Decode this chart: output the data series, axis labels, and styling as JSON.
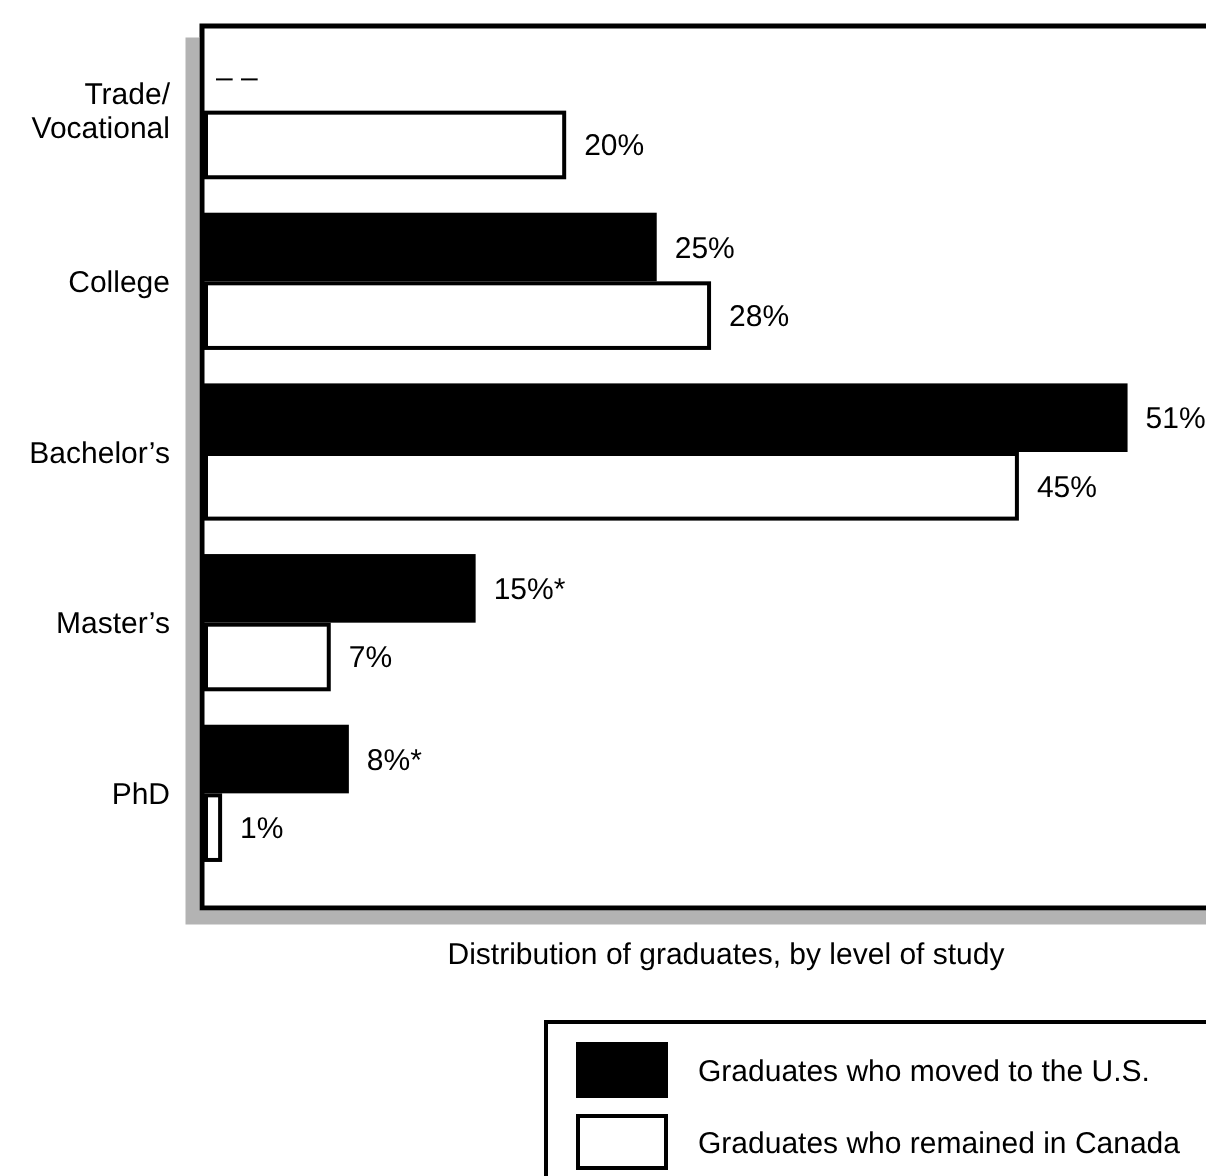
{
  "chart_data": {
    "type": "bar",
    "orientation": "horizontal",
    "xlabel": "Distribution of graduates, by level of study",
    "categories": [
      "Trade/Vocational",
      "College",
      "Bachelor’s",
      "Master’s",
      "PhD"
    ],
    "series": [
      {
        "name": "Graduates who moved to the U.S.",
        "color": "#000000",
        "values": [
          null,
          25,
          51,
          15,
          8
        ],
        "value_labels": [
          "– –",
          "25%",
          "51%",
          "15%*",
          "8%*"
        ]
      },
      {
        "name": "Graduates who remained in Canada",
        "color": "#ffffff",
        "values": [
          20,
          28,
          45,
          7,
          1
        ],
        "value_labels": [
          "20%",
          "28%",
          "45%",
          "7%",
          "1%"
        ]
      }
    ],
    "xlim": [
      0,
      55
    ],
    "tick_labels": "y",
    "legend": "bottom right"
  }
}
